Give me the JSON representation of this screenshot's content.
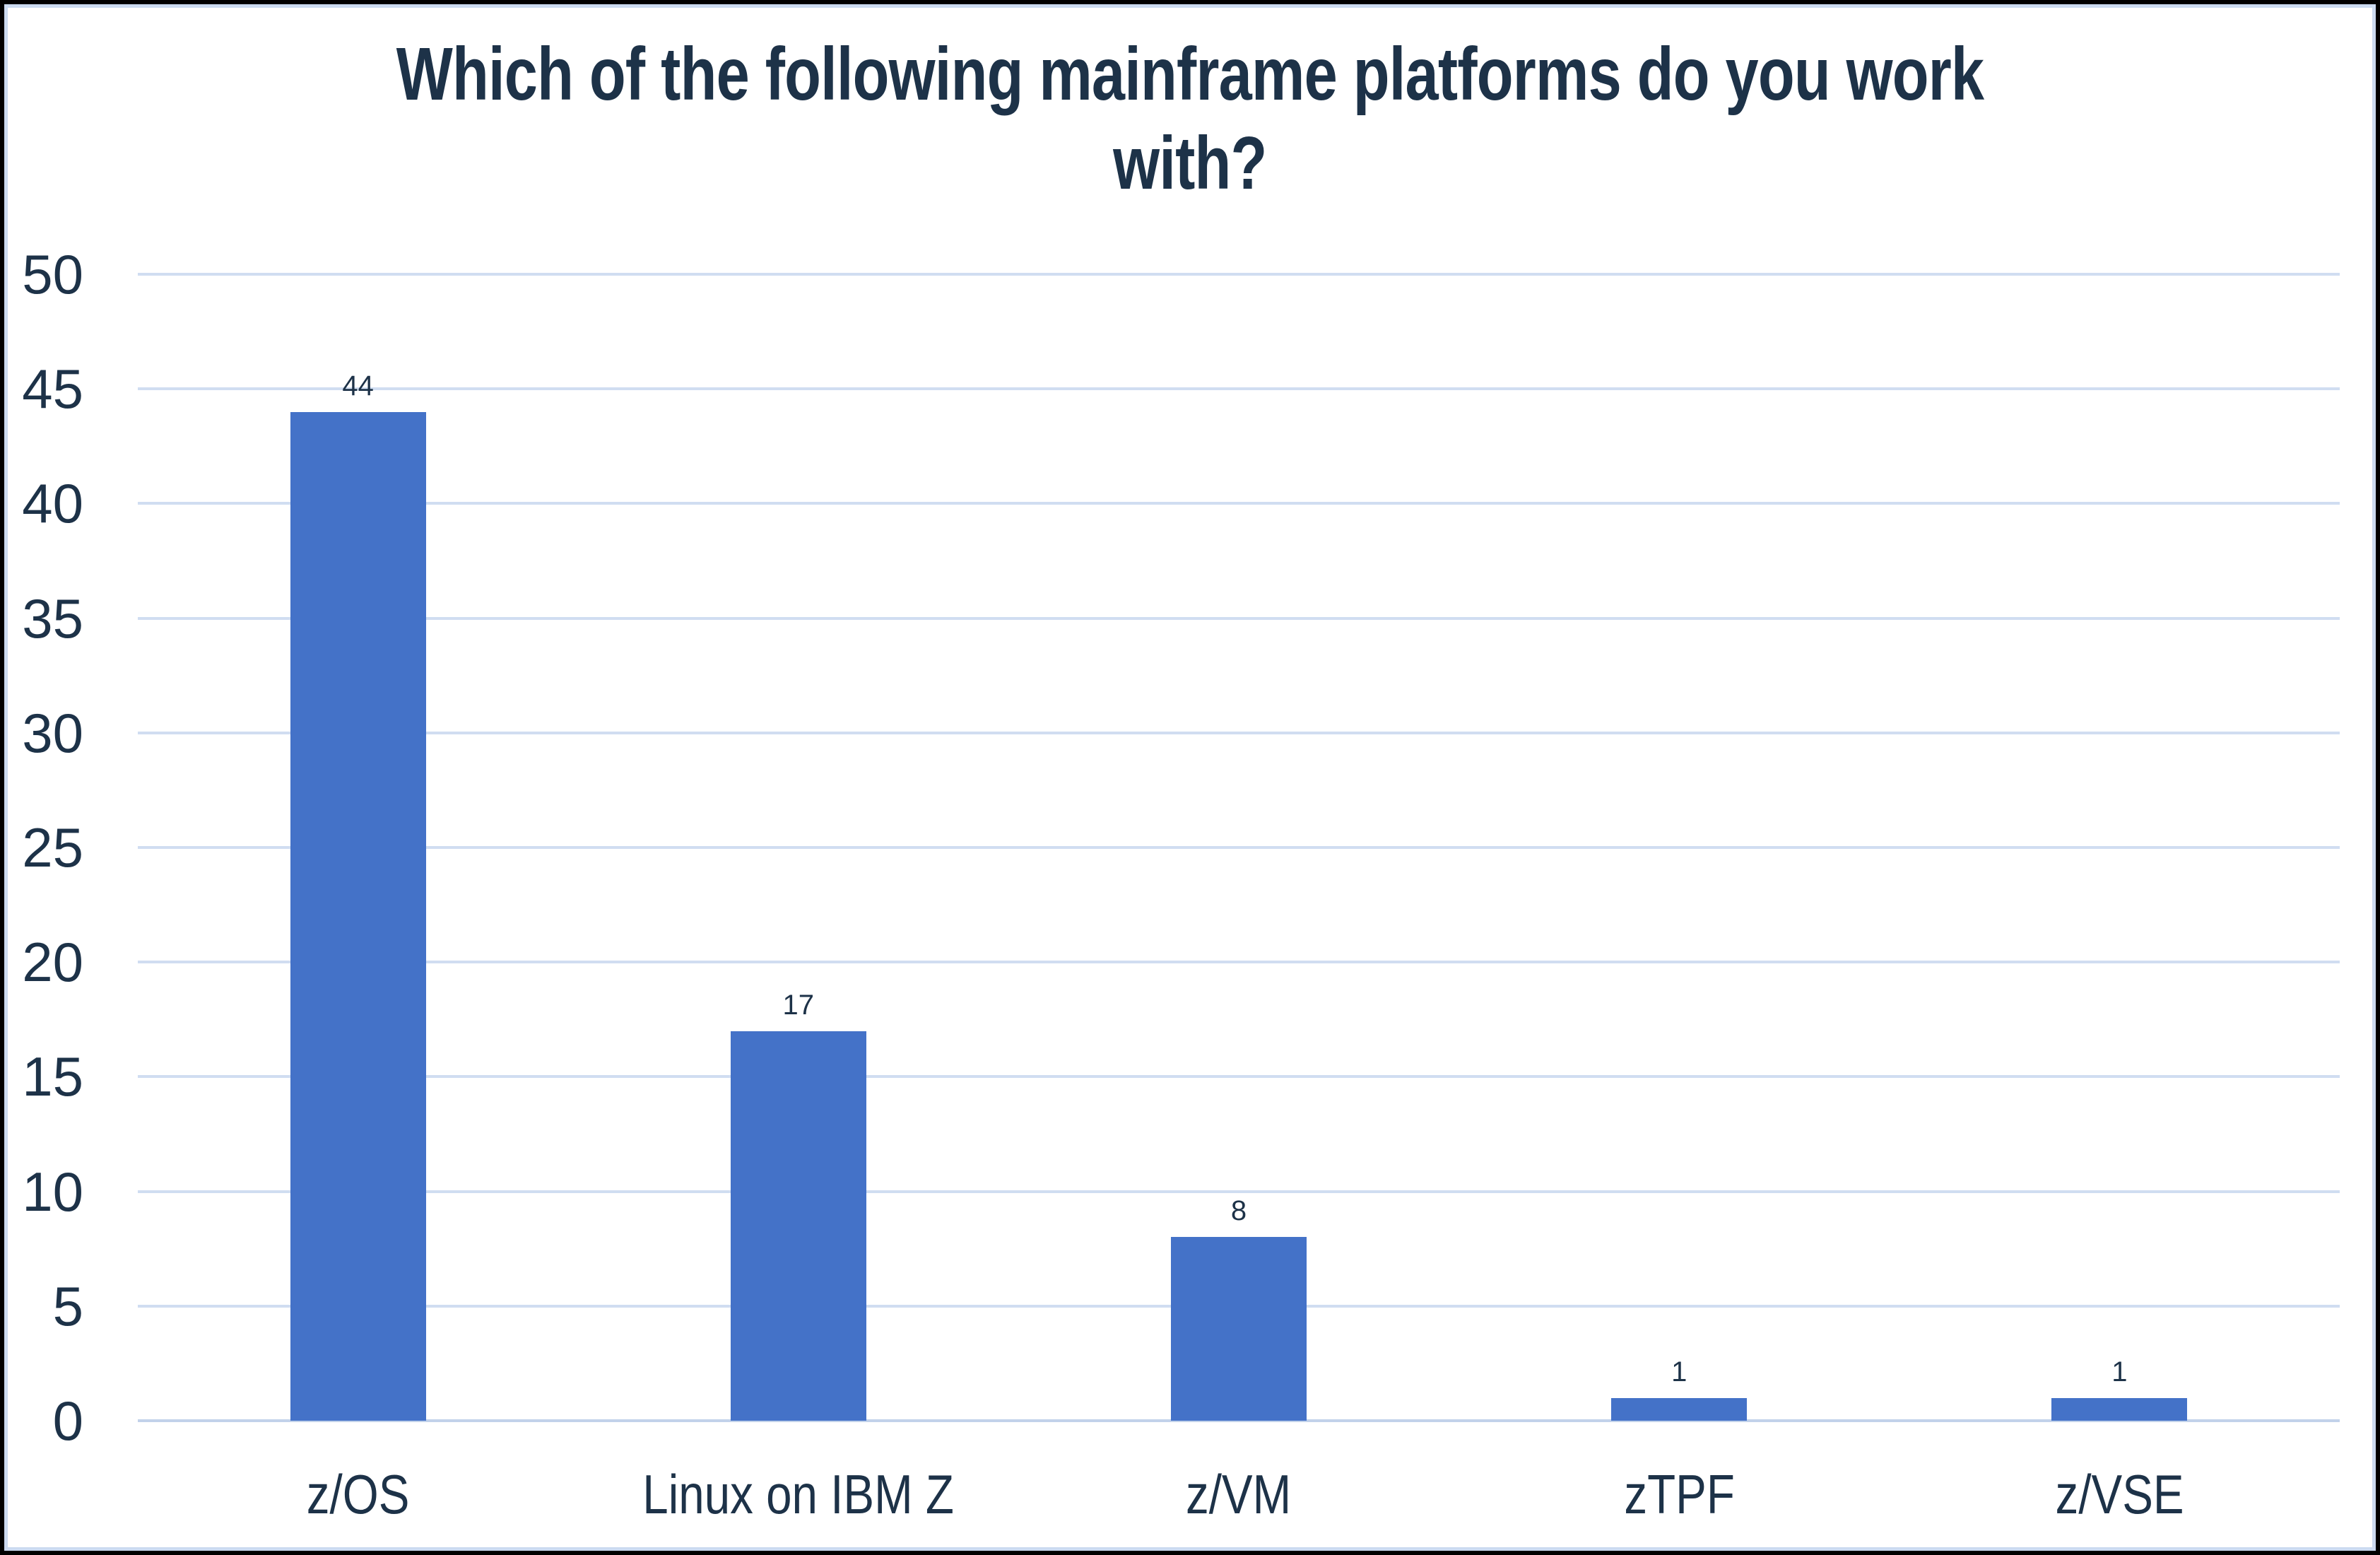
{
  "title": {
    "full": "Which of the following mainframe platforms do you work with?",
    "lines": [
      "Which of the following mainframe platforms do you work",
      "with?"
    ]
  },
  "colors": {
    "text": "#1d3248",
    "bar": "#4472c8",
    "gridline": "#d0ddf1",
    "axis_line": "#c2d2ea",
    "outer_border": "#000000",
    "inner_border": "#cbdaf0",
    "background": "#ffffff"
  },
  "chart_data": {
    "type": "bar",
    "title": "Which of the following mainframe platforms do you work with?",
    "categories": [
      "z/OS",
      "Linux on IBM Z",
      "z/VM",
      "zTPF",
      "z/VSE"
    ],
    "values": [
      44,
      17,
      8,
      1,
      1
    ],
    "xlabel": "",
    "ylabel": "",
    "ylim": [
      0,
      50
    ],
    "y_ticks": [
      0,
      5,
      10,
      15,
      20,
      25,
      30,
      35,
      40,
      45,
      50
    ],
    "grid": "horizontal",
    "legend": "none",
    "bar_color": "#4472c8",
    "data_labels_shown": true
  }
}
